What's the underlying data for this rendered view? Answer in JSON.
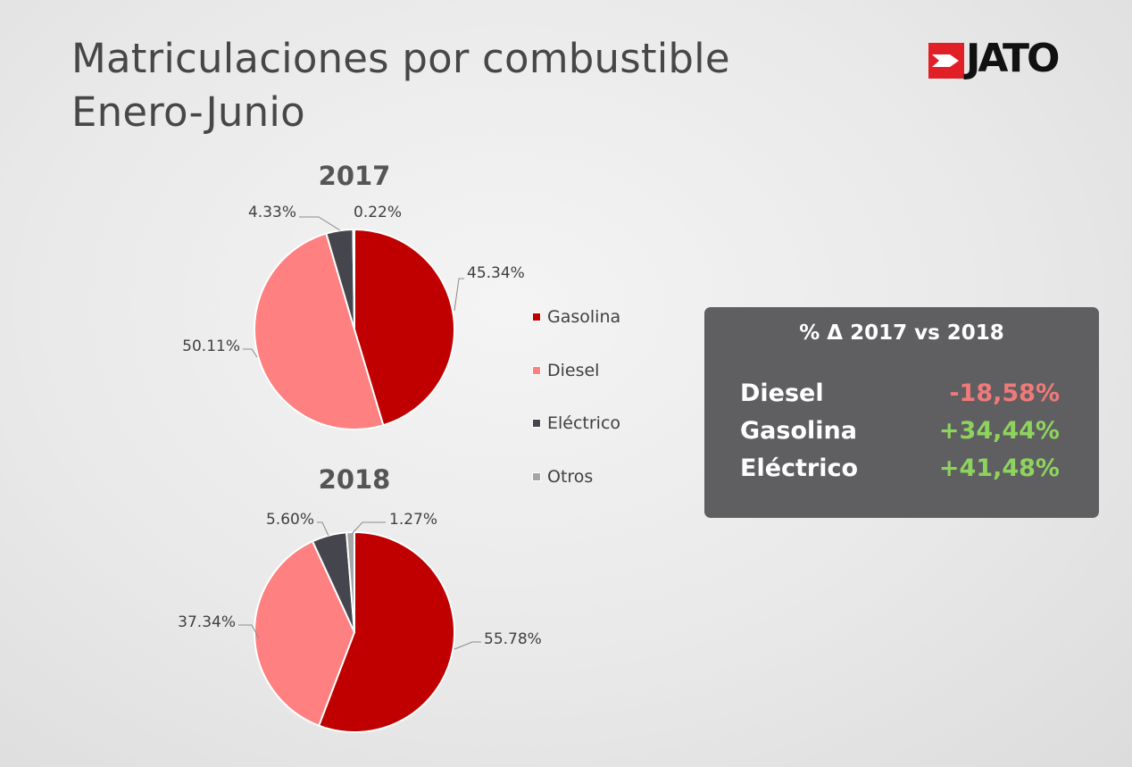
{
  "title_line1": "Matriculaciones por combustible",
  "title_line2": "Enero-Junio",
  "logo_text": "JATO",
  "colors": {
    "gasolina": "#c00000",
    "diesel": "#ff8080",
    "electrico": "#45454d",
    "otros": "#a6a6a6",
    "panel_bg": "#5f5f62",
    "negative": "#f07a7a",
    "positive": "#8ed35e"
  },
  "legend": [
    {
      "label": "Gasolina",
      "color": "#c00000"
    },
    {
      "label": "Diesel",
      "color": "#ff8080"
    },
    {
      "label": "Eléctrico",
      "color": "#45454d"
    },
    {
      "label": "Otros",
      "color": "#a6a6a6"
    }
  ],
  "chart_data": [
    {
      "type": "pie",
      "title": "2017",
      "categories": [
        "Gasolina",
        "Diesel",
        "Eléctrico",
        "Otros"
      ],
      "values": [
        45.34,
        50.11,
        4.33,
        0.22
      ],
      "labels": [
        "45.34%",
        "50.11%",
        "4.33%",
        "0.22%"
      ]
    },
    {
      "type": "pie",
      "title": "2018",
      "categories": [
        "Gasolina",
        "Diesel",
        "Eléctrico",
        "Otros"
      ],
      "values": [
        55.78,
        37.34,
        5.6,
        1.27
      ],
      "labels": [
        "55.78%",
        "37.34%",
        "5.60%",
        "1.27%"
      ]
    }
  ],
  "panel": {
    "title": "% Δ 2017 vs 2018",
    "rows": [
      {
        "label": "Diesel",
        "value": "-18,58%"
      },
      {
        "label": "Gasolina",
        "value": "+34,44%"
      },
      {
        "label": "Eléctrico",
        "value": "+41,48%"
      }
    ]
  }
}
